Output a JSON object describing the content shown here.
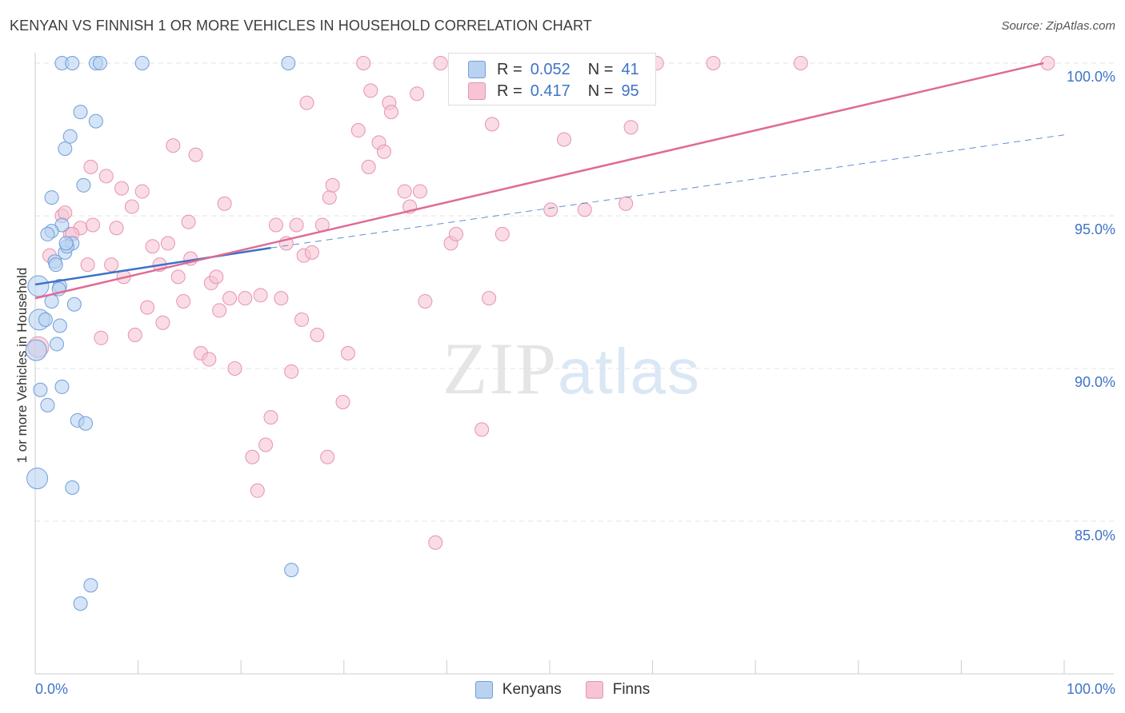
{
  "title": "KENYAN VS FINNISH 1 OR MORE VEHICLES IN HOUSEHOLD CORRELATION CHART",
  "source": "Source: ZipAtlas.com",
  "watermark": {
    "zip": "ZIP",
    "atlas": "atlas"
  },
  "legend": {
    "rows": [
      {
        "r_label": "R =",
        "r_value": "0.052",
        "n_label": "N =",
        "n_value": "41"
      },
      {
        "r_label": "R =",
        "r_value": "0.417",
        "n_label": "N =",
        "n_value": "95"
      }
    ]
  },
  "colors": {
    "kenyan_fill": "#b9d2f0",
    "kenyan_stroke": "#6f9edc",
    "kenyan_line": "#3a72c6",
    "finn_fill": "#f6c4d4",
    "finn_stroke": "#e693b0",
    "finn_line": "#e06a95",
    "grid": "#e3e3e3",
    "tick_text": "#3e74c8"
  },
  "chart_data": {
    "type": "scatter",
    "title": "KENYAN VS FINNISH 1 OR MORE VEHICLES IN HOUSEHOLD CORRELATION CHART",
    "xlabel": "",
    "ylabel": "1 or more Vehicles in Household",
    "xlim": [
      0,
      100
    ],
    "ylim": [
      80.5,
      100.5
    ],
    "x_tick_labels": [
      "0.0%",
      "100.0%"
    ],
    "y_ticks": [
      85,
      90,
      95,
      100
    ],
    "y_tick_labels": [
      "85.0%",
      "90.0%",
      "95.0%",
      "100.0%"
    ],
    "grid": true,
    "legend_placement": "bottom-center",
    "series": [
      {
        "name": "Kenyans",
        "r": 0.052,
        "n": 41,
        "trend": {
          "x": [
            0,
            22.9
          ],
          "y": [
            92.75,
            93.95
          ],
          "dashed_to": [
            100,
            97.65
          ]
        },
        "points": [
          [
            0.3,
            92.7
          ],
          [
            0.5,
            89.3
          ],
          [
            1.2,
            88.8
          ],
          [
            1.6,
            92.2
          ],
          [
            2.1,
            90.8
          ],
          [
            0.4,
            91.6
          ],
          [
            2.6,
            89.4
          ],
          [
            2.4,
            91.4
          ],
          [
            2.4,
            92.7
          ],
          [
            3.6,
            94.1
          ],
          [
            1.6,
            95.6
          ],
          [
            2.6,
            94.7
          ],
          [
            1.6,
            94.5
          ],
          [
            2.9,
            93.8
          ],
          [
            3.1,
            94.0
          ],
          [
            1.9,
            93.5
          ],
          [
            2.9,
            97.2
          ],
          [
            3.4,
            97.6
          ],
          [
            4.4,
            98.4
          ],
          [
            4.7,
            96.0
          ],
          [
            5.9,
            98.1
          ],
          [
            2.6,
            100.0
          ],
          [
            3.6,
            100.0
          ],
          [
            5.9,
            100.0
          ],
          [
            6.3,
            100.0
          ],
          [
            10.4,
            100.0
          ],
          [
            24.6,
            100.0
          ],
          [
            3.8,
            92.1
          ],
          [
            4.1,
            88.3
          ],
          [
            4.9,
            88.2
          ],
          [
            3.6,
            86.1
          ],
          [
            5.4,
            82.9
          ],
          [
            4.4,
            82.3
          ],
          [
            24.9,
            83.4
          ],
          [
            1.0,
            91.6
          ],
          [
            0.2,
            86.4
          ],
          [
            2.0,
            93.4
          ],
          [
            1.2,
            94.4
          ],
          [
            3.0,
            94.1
          ],
          [
            2.3,
            92.6
          ],
          [
            0.1,
            90.6
          ]
        ]
      },
      {
        "name": "Finns",
        "r": 0.417,
        "n": 95,
        "trend": {
          "x": [
            0,
            98
          ],
          "y": [
            92.3,
            100.0
          ]
        },
        "points": [
          [
            0.3,
            90.7
          ],
          [
            1.4,
            93.7
          ],
          [
            2.6,
            95.0
          ],
          [
            3.4,
            94.4
          ],
          [
            4.4,
            94.6
          ],
          [
            5.1,
            93.4
          ],
          [
            5.4,
            96.6
          ],
          [
            5.6,
            94.7
          ],
          [
            6.4,
            91.0
          ],
          [
            6.9,
            96.3
          ],
          [
            7.4,
            93.4
          ],
          [
            7.9,
            94.6
          ],
          [
            8.4,
            95.9
          ],
          [
            8.6,
            93.0
          ],
          [
            9.4,
            95.3
          ],
          [
            9.7,
            91.1
          ],
          [
            10.4,
            95.8
          ],
          [
            10.9,
            92.0
          ],
          [
            11.4,
            94.0
          ],
          [
            12.1,
            93.4
          ],
          [
            12.4,
            91.5
          ],
          [
            12.9,
            94.1
          ],
          [
            13.4,
            97.3
          ],
          [
            13.9,
            93.0
          ],
          [
            14.4,
            92.2
          ],
          [
            14.9,
            94.8
          ],
          [
            15.1,
            93.6
          ],
          [
            15.6,
            97.0
          ],
          [
            16.1,
            90.5
          ],
          [
            16.9,
            90.3
          ],
          [
            17.1,
            92.8
          ],
          [
            17.6,
            93.0
          ],
          [
            17.9,
            91.9
          ],
          [
            18.4,
            95.4
          ],
          [
            18.9,
            92.3
          ],
          [
            19.4,
            90.0
          ],
          [
            21.1,
            87.1
          ],
          [
            21.6,
            86.0
          ],
          [
            21.9,
            92.4
          ],
          [
            22.4,
            87.5
          ],
          [
            22.9,
            88.4
          ],
          [
            23.4,
            94.7
          ],
          [
            23.9,
            92.3
          ],
          [
            24.4,
            94.1
          ],
          [
            24.9,
            89.9
          ],
          [
            25.4,
            94.7
          ],
          [
            25.9,
            91.6
          ],
          [
            26.1,
            93.7
          ],
          [
            26.4,
            98.7
          ],
          [
            26.9,
            93.8
          ],
          [
            27.4,
            91.1
          ],
          [
            27.9,
            94.7
          ],
          [
            28.4,
            87.1
          ],
          [
            28.6,
            95.6
          ],
          [
            28.9,
            96.0
          ],
          [
            29.9,
            88.9
          ],
          [
            30.4,
            90.5
          ],
          [
            31.4,
            97.8
          ],
          [
            31.9,
            100.0
          ],
          [
            32.4,
            96.6
          ],
          [
            32.6,
            99.1
          ],
          [
            33.4,
            97.4
          ],
          [
            33.9,
            97.1
          ],
          [
            34.4,
            98.7
          ],
          [
            34.6,
            98.4
          ],
          [
            35.9,
            95.8
          ],
          [
            36.4,
            95.3
          ],
          [
            37.1,
            99.0
          ],
          [
            37.4,
            95.8
          ],
          [
            37.9,
            92.2
          ],
          [
            39.4,
            100.0
          ],
          [
            40.4,
            94.1
          ],
          [
            40.9,
            94.4
          ],
          [
            42.1,
            100.0
          ],
          [
            43.4,
            88.0
          ],
          [
            44.1,
            92.3
          ],
          [
            44.4,
            98.0
          ],
          [
            45.9,
            100.0
          ],
          [
            50.1,
            95.2
          ],
          [
            51.4,
            97.5
          ],
          [
            53.4,
            95.2
          ],
          [
            56.6,
            100.0
          ],
          [
            57.4,
            95.4
          ],
          [
            57.9,
            97.9
          ],
          [
            59.4,
            100.0
          ],
          [
            60.4,
            100.0
          ],
          [
            65.9,
            100.0
          ],
          [
            74.4,
            100.0
          ],
          [
            98.4,
            100.0
          ],
          [
            45.4,
            94.4
          ],
          [
            38.9,
            84.3
          ],
          [
            41.4,
            100.0
          ],
          [
            3.6,
            94.4
          ],
          [
            2.9,
            95.1
          ],
          [
            20.4,
            92.3
          ]
        ]
      }
    ]
  }
}
